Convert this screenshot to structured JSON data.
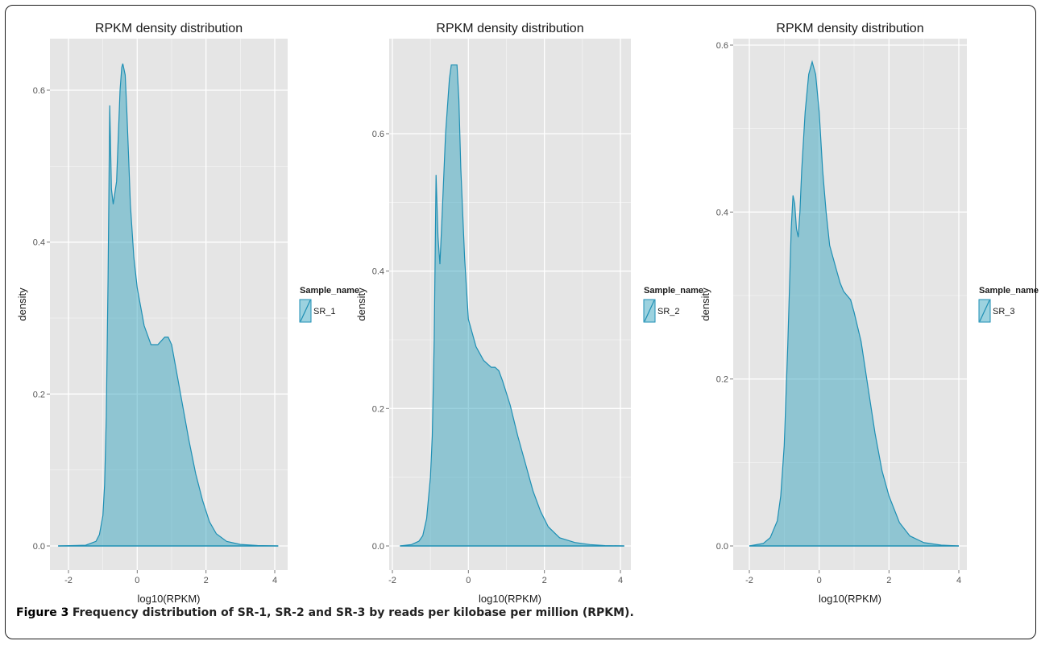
{
  "figure": {
    "caption_label": "Figure 3",
    "caption_text": "Frequency distribution of SR-1, SR-2 and SR-3 by reads per kilobase per million (RPKM)."
  },
  "colors": {
    "panel_bg": "#e5e5e5",
    "grid": "#ffffff",
    "fill": "#3aa6c0",
    "line": "#1e8fb4"
  },
  "chart_data": [
    {
      "type": "area",
      "title": "RPKM density distribution",
      "xlabel": "log10(RPKM)",
      "ylabel": "density",
      "xlim": [
        -2.3,
        4.1
      ],
      "ylim": [
        0,
        0.6
      ],
      "xticks": [
        -2,
        0,
        2,
        4
      ],
      "yticks": [
        0.0,
        0.2,
        0.4,
        0.6
      ],
      "ytick_labels": [
        "0.0",
        "0.2",
        "0.4",
        "0.6"
      ],
      "grid": true,
      "legend": {
        "title": "Sample_name",
        "placement": "right"
      },
      "series": [
        {
          "name": "SR_1",
          "x": [
            -2.3,
            -1.5,
            -1.2,
            -1.1,
            -1.0,
            -0.95,
            -0.9,
            -0.85,
            -0.8,
            -0.75,
            -0.7,
            -0.6,
            -0.5,
            -0.45,
            -0.42,
            -0.35,
            -0.3,
            -0.25,
            -0.2,
            -0.1,
            0.0,
            0.2,
            0.4,
            0.6,
            0.7,
            0.8,
            0.9,
            1.0,
            1.1,
            1.3,
            1.5,
            1.7,
            1.9,
            2.1,
            2.3,
            2.6,
            3.0,
            3.5,
            4.1
          ],
          "y": [
            0.0,
            0.001,
            0.006,
            0.015,
            0.04,
            0.08,
            0.17,
            0.35,
            0.58,
            0.47,
            0.45,
            0.48,
            0.6,
            0.63,
            0.635,
            0.62,
            0.57,
            0.51,
            0.45,
            0.38,
            0.34,
            0.29,
            0.265,
            0.265,
            0.27,
            0.275,
            0.275,
            0.265,
            0.24,
            0.19,
            0.14,
            0.095,
            0.06,
            0.032,
            0.016,
            0.006,
            0.002,
            0.0005,
            0.0
          ]
        }
      ]
    },
    {
      "type": "area",
      "title": "RPKM density distribution",
      "xlabel": "log10(RPKM)",
      "ylabel": "density",
      "xlim": [
        -1.9,
        4.1
      ],
      "ylim": [
        0,
        0.6
      ],
      "xticks": [
        -2,
        0,
        2,
        4
      ],
      "yticks": [
        0.0,
        0.2,
        0.4,
        0.6
      ],
      "ytick_labels": [
        "0.0",
        "0.2",
        "0.4",
        "0.6"
      ],
      "grid": true,
      "legend": {
        "title": "Sample_name",
        "placement": "right"
      },
      "series": [
        {
          "name": "SR_2",
          "x": [
            -1.8,
            -1.5,
            -1.3,
            -1.2,
            -1.1,
            -1.0,
            -0.95,
            -0.9,
            -0.85,
            -0.8,
            -0.75,
            -0.7,
            -0.6,
            -0.5,
            -0.45,
            -0.4,
            -0.3,
            -0.25,
            -0.2,
            -0.1,
            0.0,
            0.2,
            0.4,
            0.6,
            0.7,
            0.8,
            0.9,
            1.1,
            1.3,
            1.5,
            1.7,
            1.9,
            2.1,
            2.4,
            2.8,
            3.2,
            3.6,
            4.1
          ],
          "y": [
            0.0,
            0.002,
            0.007,
            0.015,
            0.04,
            0.1,
            0.16,
            0.3,
            0.54,
            0.45,
            0.41,
            0.47,
            0.6,
            0.68,
            0.7,
            0.7,
            0.7,
            0.65,
            0.55,
            0.42,
            0.33,
            0.29,
            0.27,
            0.26,
            0.26,
            0.255,
            0.24,
            0.205,
            0.16,
            0.12,
            0.08,
            0.05,
            0.028,
            0.012,
            0.005,
            0.002,
            0.0005,
            0.0
          ]
        }
      ]
    },
    {
      "type": "area",
      "title": "RPKM density distribution",
      "xlabel": "log10(RPKM)",
      "ylabel": "density",
      "xlim": [
        -2.2,
        4.1
      ],
      "ylim": [
        0,
        0.6
      ],
      "xticks": [
        -2,
        0,
        2,
        4
      ],
      "yticks": [
        0.0,
        0.2,
        0.4,
        0.6
      ],
      "ytick_labels": [
        "0.0",
        "0.2",
        "0.4",
        "0.6"
      ],
      "grid": true,
      "legend": {
        "title": "Sample_name",
        "placement": "right"
      },
      "series": [
        {
          "name": "SR_3",
          "x": [
            -2.0,
            -1.6,
            -1.4,
            -1.2,
            -1.1,
            -1.0,
            -0.9,
            -0.8,
            -0.75,
            -0.7,
            -0.65,
            -0.6,
            -0.55,
            -0.5,
            -0.4,
            -0.3,
            -0.2,
            -0.1,
            0.0,
            0.1,
            0.2,
            0.3,
            0.5,
            0.6,
            0.7,
            0.8,
            0.9,
            1.0,
            1.2,
            1.4,
            1.6,
            1.8,
            2.0,
            2.3,
            2.6,
            3.0,
            3.5,
            4.0
          ],
          "y": [
            0.0,
            0.003,
            0.01,
            0.03,
            0.06,
            0.12,
            0.24,
            0.38,
            0.42,
            0.41,
            0.38,
            0.37,
            0.4,
            0.45,
            0.52,
            0.565,
            0.58,
            0.565,
            0.52,
            0.45,
            0.4,
            0.36,
            0.33,
            0.315,
            0.305,
            0.3,
            0.295,
            0.28,
            0.245,
            0.19,
            0.135,
            0.09,
            0.06,
            0.028,
            0.012,
            0.004,
            0.001,
            0.0
          ]
        }
      ]
    }
  ]
}
